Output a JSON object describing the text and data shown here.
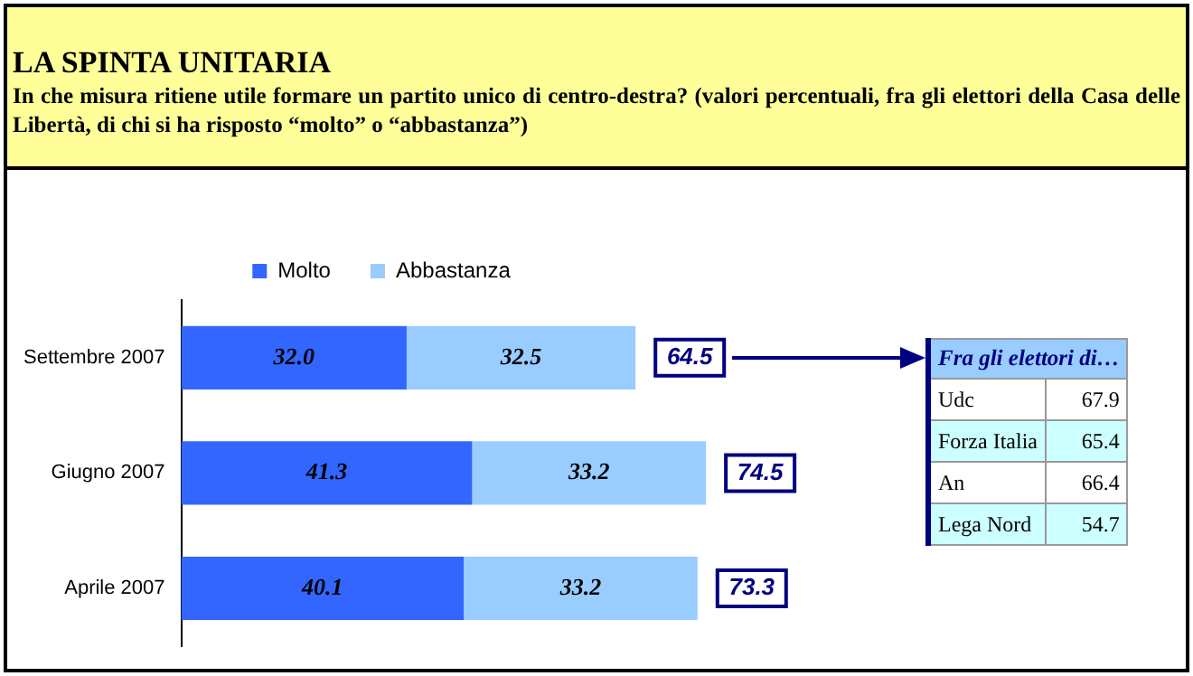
{
  "chart_data": [
    {
      "type": "bar",
      "orientation": "horizontal",
      "stacked": true,
      "title": "LA SPINTA UNITARIA",
      "subtitle": "In che misura ritiene utile formare un partito unico di centro-destra? (valori percentuali, fra gli elettori della Casa delle Libertà, di chi si ha risposto “molto” o “abbastanza”)",
      "categories": [
        "Settembre 2007",
        "Giugno 2007",
        "Aprile 2007"
      ],
      "series": [
        {
          "name": "Molto",
          "color": "#3366ff",
          "values": [
            32.0,
            41.3,
            40.1
          ],
          "value_labels": [
            "32.0",
            "41.3",
            "40.1"
          ]
        },
        {
          "name": "Abbastanza",
          "color": "#99ccff",
          "values": [
            32.5,
            33.2,
            33.2
          ],
          "value_labels": [
            "32.5",
            "33.2",
            "33.2"
          ]
        }
      ],
      "totals": [
        "64.5",
        "74.5",
        "73.3"
      ],
      "legend": "top",
      "tick_labels": "y"
    },
    {
      "type": "other",
      "title": "Fra gli elettori di…",
      "categories": [
        "Udc",
        "Forza Italia",
        "An",
        "Lega Nord"
      ],
      "values": [
        67.9,
        65.4,
        66.4,
        54.7
      ],
      "data_labels": true
    }
  ]
}
